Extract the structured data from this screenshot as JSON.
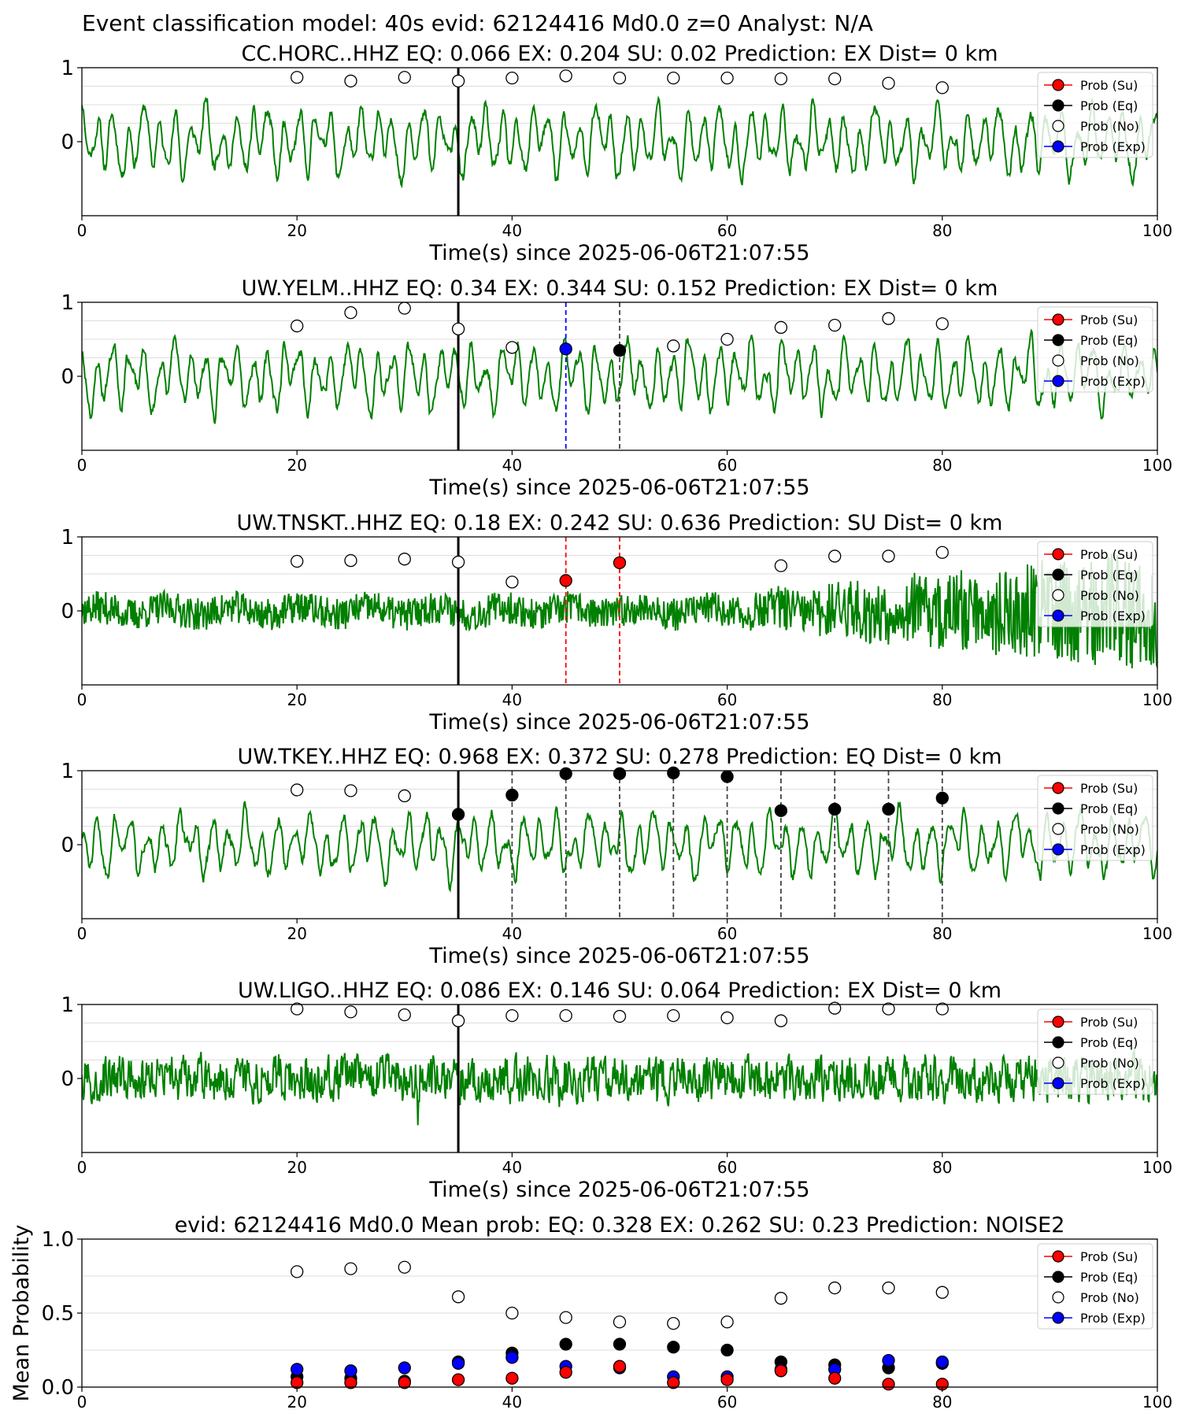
{
  "suptitle": "Event classification model: 40s evid: 62124416 Md0.0 z=0 Analyst: N/A",
  "legend_labels": [
    "Prob (Su)",
    "Prob (Eq)",
    "Prob (No)",
    "Prob (Exp)"
  ],
  "colors": {
    "waveform": "#008000",
    "su": "#ff0000",
    "eq": "#000000",
    "no": "#ffffff",
    "exp": "#0000ff",
    "grid": "#dddddd"
  },
  "chart_data": [
    {
      "type": "line",
      "title": "CC.HORC..HHZ   EQ: 0.066  EX: 0.204  SU: 0.02   Prediction: EX    Dist= 0 km",
      "xlabel": "Time(s) since 2025-06-06T21:07:55",
      "ylabel": "",
      "xlim": [
        0,
        100
      ],
      "ylim": [
        -1,
        1
      ],
      "xticks": [
        0,
        20,
        40,
        60,
        80,
        100
      ],
      "yticks": [
        0,
        1
      ],
      "legend": "top-right",
      "waveform": {
        "kind": "lowfreq",
        "seed": 11,
        "amplitude": 0.55
      },
      "pick_time": 35,
      "window_times": [
        20,
        25,
        30,
        35,
        40,
        45,
        50,
        55,
        60,
        65,
        70,
        75,
        80
      ],
      "markers": [
        {
          "cls": "no",
          "x": [
            20,
            25,
            30,
            35,
            40,
            45,
            50,
            55,
            60,
            65,
            70,
            75,
            80
          ],
          "y": [
            0.87,
            0.82,
            0.87,
            0.82,
            0.86,
            0.89,
            0.86,
            0.86,
            0.86,
            0.85,
            0.85,
            0.79,
            0.73
          ]
        }
      ],
      "vlines": []
    },
    {
      "type": "line",
      "title": "UW.YELM..HHZ   EQ: 0.34  EX: 0.344  SU: 0.152   Prediction: EX    Dist= 0 km",
      "xlabel": "Time(s) since 2025-06-06T21:07:55",
      "ylabel": "",
      "xlim": [
        0,
        100
      ],
      "ylim": [
        -1,
        1
      ],
      "xticks": [
        0,
        20,
        40,
        60,
        80,
        100
      ],
      "yticks": [
        0,
        1
      ],
      "legend": "top-right",
      "waveform": {
        "kind": "lowfreq",
        "seed": 23,
        "amplitude": 0.55
      },
      "pick_time": 35,
      "window_times": [
        20,
        25,
        30,
        35,
        40,
        45,
        50,
        55,
        60,
        65,
        70,
        75,
        80
      ],
      "markers": [
        {
          "cls": "no",
          "x": [
            20,
            25,
            30,
            35,
            40,
            55,
            60,
            65,
            70,
            75,
            80
          ],
          "y": [
            0.68,
            0.86,
            0.92,
            0.64,
            0.39,
            0.41,
            0.5,
            0.66,
            0.69,
            0.78,
            0.71
          ]
        },
        {
          "cls": "exp",
          "x": [
            45
          ],
          "y": [
            0.37
          ]
        },
        {
          "cls": "eq",
          "x": [
            50
          ],
          "y": [
            0.35
          ]
        }
      ],
      "vlines": [
        {
          "x": 45,
          "cls": "exp"
        },
        {
          "x": 50,
          "cls": "eq"
        }
      ]
    },
    {
      "type": "line",
      "title": "UW.TNSKT..HHZ   EQ: 0.18  EX: 0.242  SU: 0.636   Prediction: SU    Dist= 0 km",
      "xlabel": "Time(s) since 2025-06-06T21:07:55",
      "ylabel": "",
      "xlim": [
        0,
        100
      ],
      "ylim": [
        -1,
        1
      ],
      "xticks": [
        0,
        20,
        40,
        60,
        80,
        100
      ],
      "yticks": [
        0,
        1
      ],
      "legend": "top-right",
      "waveform": {
        "kind": "growing",
        "seed": 37,
        "amplitude": 0.35
      },
      "pick_time": 35,
      "window_times": [
        20,
        25,
        30,
        35,
        40,
        45,
        50,
        55,
        60,
        65,
        70,
        75,
        80
      ],
      "markers": [
        {
          "cls": "no",
          "x": [
            20,
            25,
            30,
            35,
            40,
            65,
            70,
            75,
            80
          ],
          "y": [
            0.67,
            0.68,
            0.7,
            0.66,
            0.39,
            0.61,
            0.74,
            0.74,
            0.79
          ]
        },
        {
          "cls": "su",
          "x": [
            45,
            50
          ],
          "y": [
            0.41,
            0.65
          ]
        }
      ],
      "vlines": [
        {
          "x": 45,
          "cls": "su"
        },
        {
          "x": 50,
          "cls": "su"
        }
      ]
    },
    {
      "type": "line",
      "title": "UW.TKEY..HHZ   EQ: 0.968  EX: 0.372  SU: 0.278   Prediction: EQ    Dist= 0 km",
      "xlabel": "Time(s) since 2025-06-06T21:07:55",
      "ylabel": "",
      "xlim": [
        0,
        100
      ],
      "ylim": [
        -1,
        1
      ],
      "xticks": [
        0,
        20,
        40,
        60,
        80,
        100
      ],
      "yticks": [
        0,
        1
      ],
      "legend": "top-right",
      "waveform": {
        "kind": "lowfreq",
        "seed": 51,
        "amplitude": 0.5
      },
      "pick_time": 35,
      "window_times": [
        20,
        25,
        30,
        35,
        40,
        45,
        50,
        55,
        60,
        65,
        70,
        75,
        80
      ],
      "markers": [
        {
          "cls": "no",
          "x": [
            20,
            25,
            30
          ],
          "y": [
            0.74,
            0.73,
            0.66
          ]
        },
        {
          "cls": "eq",
          "x": [
            35,
            40,
            45,
            50,
            55,
            60,
            65,
            70,
            75,
            80
          ],
          "y": [
            0.41,
            0.67,
            0.96,
            0.96,
            0.97,
            0.92,
            0.46,
            0.48,
            0.48,
            0.63
          ]
        }
      ],
      "vlines": [
        {
          "x": 40,
          "cls": "eq"
        },
        {
          "x": 45,
          "cls": "eq"
        },
        {
          "x": 50,
          "cls": "eq"
        },
        {
          "x": 55,
          "cls": "eq"
        },
        {
          "x": 60,
          "cls": "eq"
        },
        {
          "x": 65,
          "cls": "eq"
        },
        {
          "x": 70,
          "cls": "eq"
        },
        {
          "x": 75,
          "cls": "eq"
        },
        {
          "x": 80,
          "cls": "eq"
        }
      ]
    },
    {
      "type": "line",
      "title": "UW.LIGO..HHZ   EQ: 0.086  EX: 0.146  SU: 0.064   Prediction: EX    Dist= 0 km",
      "xlabel": "Time(s) since 2025-06-06T21:07:55",
      "ylabel": "",
      "xlim": [
        0,
        100
      ],
      "ylim": [
        -1,
        1
      ],
      "xticks": [
        0,
        20,
        40,
        60,
        80,
        100
      ],
      "yticks": [
        0,
        1
      ],
      "legend": "top-right",
      "waveform": {
        "kind": "noise",
        "seed": 67,
        "amplitude": 0.4
      },
      "pick_time": 35,
      "window_times": [
        20,
        25,
        30,
        35,
        40,
        45,
        50,
        55,
        60,
        65,
        70,
        75,
        80
      ],
      "markers": [
        {
          "cls": "no",
          "x": [
            20,
            25,
            30,
            35,
            40,
            45,
            50,
            55,
            60,
            65,
            70,
            75,
            80
          ],
          "y": [
            0.94,
            0.9,
            0.86,
            0.78,
            0.85,
            0.85,
            0.84,
            0.85,
            0.82,
            0.78,
            0.95,
            0.94,
            0.94
          ]
        }
      ],
      "vlines": []
    },
    {
      "type": "scatter",
      "title": "evid: 62124416  Md0.0   Mean prob:    EQ: 0.328  EX: 0.262  SU: 0.23   Prediction: NOISE2",
      "xlabel": "",
      "ylabel": "Mean Probability",
      "xlim": [
        0,
        100
      ],
      "ylim": [
        0,
        1
      ],
      "xticks": [
        0,
        20,
        40,
        60,
        80,
        100
      ],
      "yticks": [
        0.0,
        0.5,
        1.0
      ],
      "legend": "top-right",
      "markers": [
        {
          "cls": "no",
          "x": [
            20,
            25,
            30,
            35,
            40,
            45,
            50,
            55,
            60,
            65,
            70,
            75,
            80
          ],
          "y": [
            0.78,
            0.8,
            0.81,
            0.61,
            0.5,
            0.47,
            0.44,
            0.43,
            0.44,
            0.6,
            0.67,
            0.67,
            0.64
          ]
        },
        {
          "cls": "eq",
          "x": [
            20,
            25,
            30,
            35,
            40,
            45,
            50,
            55,
            60,
            65,
            70,
            75,
            80
          ],
          "y": [
            0.07,
            0.06,
            0.04,
            0.17,
            0.23,
            0.29,
            0.29,
            0.27,
            0.25,
            0.17,
            0.15,
            0.13,
            0.16
          ]
        },
        {
          "cls": "exp",
          "x": [
            20,
            25,
            30,
            35,
            40,
            45,
            50,
            55,
            60,
            65,
            70,
            75,
            80
          ],
          "y": [
            0.12,
            0.11,
            0.13,
            0.16,
            0.2,
            0.14,
            0.13,
            0.07,
            0.07,
            0.12,
            0.12,
            0.18,
            0.17
          ]
        },
        {
          "cls": "su",
          "x": [
            20,
            25,
            30,
            35,
            40,
            45,
            50,
            55,
            60,
            65,
            70,
            75,
            80
          ],
          "y": [
            0.03,
            0.03,
            0.03,
            0.05,
            0.06,
            0.1,
            0.14,
            0.03,
            0.05,
            0.11,
            0.06,
            0.02,
            0.02
          ]
        }
      ],
      "vlines": []
    }
  ]
}
